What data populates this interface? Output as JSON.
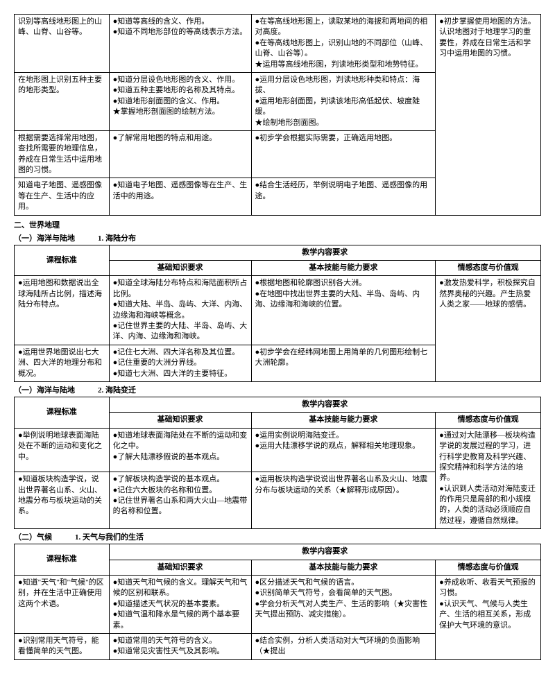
{
  "table0": {
    "rows": [
      {
        "c0": "识别等高线地形图上的山峰、山脊、山谷等。",
        "c1": "●知道等高线的含义、作用。\n●知道不同地形部位的等高线表示方法。",
        "c2": "●在等高线地形图上，读取某地的海拔和两地间的相对高度。\n●在等高线地形图上，识别山地的不同部位（山峰、山脊、山谷等）。\n★运用等高线地形图，判读地形类型和地势特征。",
        "c3": "●初步掌握使用地图的方法。认识地图对于地理学习的重要性，养成在日常生活和学习中运用地图的习惯。",
        "c3span": 4
      },
      {
        "c0": "在地形图上识别五种主要的地形类型。",
        "c1": "●知道分层设色地形图的含义、作用。\n●知道五种主要地形的名称及其特点。\n●知道地形剖面图的含义、作用。\n★掌握地形剖面图的绘制方法。",
        "c2": "●运用分层设色地形图，判读地形种类和特点：海拔、\n●运用地形剖面图，判读该地形高低起伏、坡度陡缓。\n★绘制地形剖面图。"
      },
      {
        "c0": "根据需要选择常用地图，查找所需要的地理信息，养成在日常生活中运用地图的习惯。",
        "c1": "●了解常用地图的特点和用途。",
        "c2": "●初步学会根据实际需要，正确选用地图。"
      },
      {
        "c0": "知道电子地图、遥感图像等在生产、生活中的应用。",
        "c1": "●知道电子地图、遥感图像等在生产、生活中的用途。",
        "c2": "●结合生活经历，举例说明电子地图、遥感图像的用途。"
      }
    ]
  },
  "section2": "二、世界地理",
  "sub1": {
    "title": "（一）海洋与陆地　　　1. 海陆分布",
    "headers": {
      "std": "课程标准",
      "req": "教学内容要求",
      "basic": "基础知识要求",
      "skill": "基本技能与能力要求",
      "emo": "情感态度与价值观"
    },
    "rows": [
      {
        "c0": "●运用地图和数据说出全球海陆所占比例，描述海陆分布特点。",
        "c1": "●知道全球海陆分布特点和海陆面积所占比例。\n●知道大陆、半岛、岛屿、大洋、内海、边缘海和海峡等概念。\n●记住世界主要的大陆、半岛、岛屿、大洋、内海、边缘海和海峡。",
        "c2": "●根据地图和轮廓图识别各大洲。\n●在地图中找出世界主要的大陆、半岛、岛屿、内海、边缘海和海峡的位置。",
        "c3": "●激发热爱科学，积极探究自然界奥秘的兴趣。产生热爱人类之家——地球的感情。",
        "c3span": 2
      },
      {
        "c0": "●运用世界地图说出七大洲、四大洋的地理分布和概况。",
        "c1": "●记住七大洲、四大洋名称及其位置。\n●记住重要的大洲分界线。\n●知道七大洲、四大洋的主要特征。",
        "c2": "●初步学会在经纬网地图上用简单的几何图形绘制七大洲轮廓。"
      }
    ]
  },
  "sub2": {
    "title": "（一）海洋与陆地　　　2. 海陆变迁",
    "headers": {
      "std": "课程标准",
      "req": "教学内容要求",
      "basic": "基础知识要求",
      "skill": "基本技能与能力要求",
      "emo": "情感态度与价值观"
    },
    "rows": [
      {
        "c0": "●举例说明地球表面海陆处在不断的运动和变化之中。",
        "c1": "●知道地球表面海陆处在不断的运动和变化之中。\n●了解大陆漂移假说的基本观点。",
        "c2": "●运用实例说明海陆变迁。\n●运用大陆漂移学说的观点，解释相关地理现象。",
        "c3": "●通过对大陆漂移—板块构造学说的发展过程的学习，进行科学史教育及科学兴趣、探究精神和科学方法的培养。\n●认识到人类活动对海陆变迁的作用只是局部的和小规模的，人类的活动必须顺应自然过程，遵循自然规律。",
        "c3span": 2
      },
      {
        "c0": "●知道板块构造学说，说出世界著名山系、火山、地震分布与板块运动的关系。",
        "c1": "●了解板块构造学说的基本观点。\n●记住六大板块的名称和位置。\n●记住世界著名山系和两大火山—地震带的名称和位置。",
        "c2": "●运用板块构造学说说出世界著名山系及火山、地震分布与板块运动的关系（★解释形成原因）。"
      }
    ]
  },
  "sub3": {
    "title": "（二）气候　　　1. 天气与我们的生活",
    "headers": {
      "std": "课程标准",
      "req": "教学内容要求",
      "basic": "基础知识要求",
      "skill": "基本技能与能力要求",
      "emo": "情感态度与价值观"
    },
    "rows": [
      {
        "c0": "●知道\"天气\"和\"气候\"的区别，并在生活中正确使用这两个术语。",
        "c1": "●知道天气和气候的含义。理解天气和气候的区别和联系。\n●知道描述天气状况的基本要素。\n●知道气温和降水是气候的两个基本要素。",
        "c2": "●区分描述天气和气候的语言。\n●识别简单天气符号，会看简单的天气图。\n●学会分析天气对人类生产、生活的影响（★灾害性天气提出预防、减灾措施）。",
        "c3": "●养成收听、收看天气预报的习惯。\n●认识天气、气候与人类生产、生活的相互关系，形成保护大气环境的意识。",
        "c3span": 2
      },
      {
        "c0": "●识别常用天气符号，能看懂简单的天气图。",
        "c1": "●知道常用的天气符号的含义。\n●知道常见灾害性天气及其影响。",
        "c2": "●结合实例，分析人类活动对大气环境的负面影响（★提出"
      }
    ]
  }
}
